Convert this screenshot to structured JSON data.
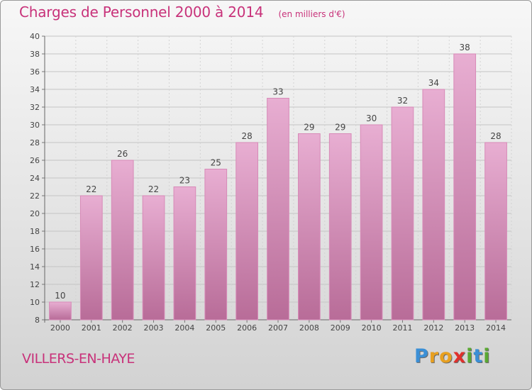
{
  "header": {
    "title": "Charges de Personnel 2000 à 2014",
    "unit": "(en milliers d'€)"
  },
  "footer": {
    "commune": "VILLERS-EN-HAYE",
    "logo_letters": [
      "P",
      "r",
      "o",
      "x",
      "i",
      "t",
      "i"
    ]
  },
  "colors": {
    "title": "#c8327a",
    "bar_light": "#e8aed2",
    "bar_dark": "#b86c98",
    "logo": [
      "#3a8fd6",
      "#e8a020",
      "#e8a020",
      "#e0302c",
      "#5aa832",
      "#3a8fd6",
      "#5aa832"
    ]
  },
  "chart_data": {
    "type": "bar",
    "categories": [
      "2000",
      "2001",
      "2002",
      "2003",
      "2004",
      "2005",
      "2006",
      "2007",
      "2008",
      "2009",
      "2010",
      "2011",
      "2012",
      "2013",
      "2014"
    ],
    "values": [
      10,
      22,
      26,
      22,
      23,
      25,
      28,
      33,
      29,
      29,
      30,
      32,
      34,
      38,
      28
    ],
    "ylim": [
      8,
      40
    ],
    "yticks": [
      8,
      10,
      12,
      14,
      16,
      18,
      20,
      22,
      24,
      26,
      28,
      30,
      32,
      34,
      36,
      38,
      40
    ],
    "grid": true
  }
}
